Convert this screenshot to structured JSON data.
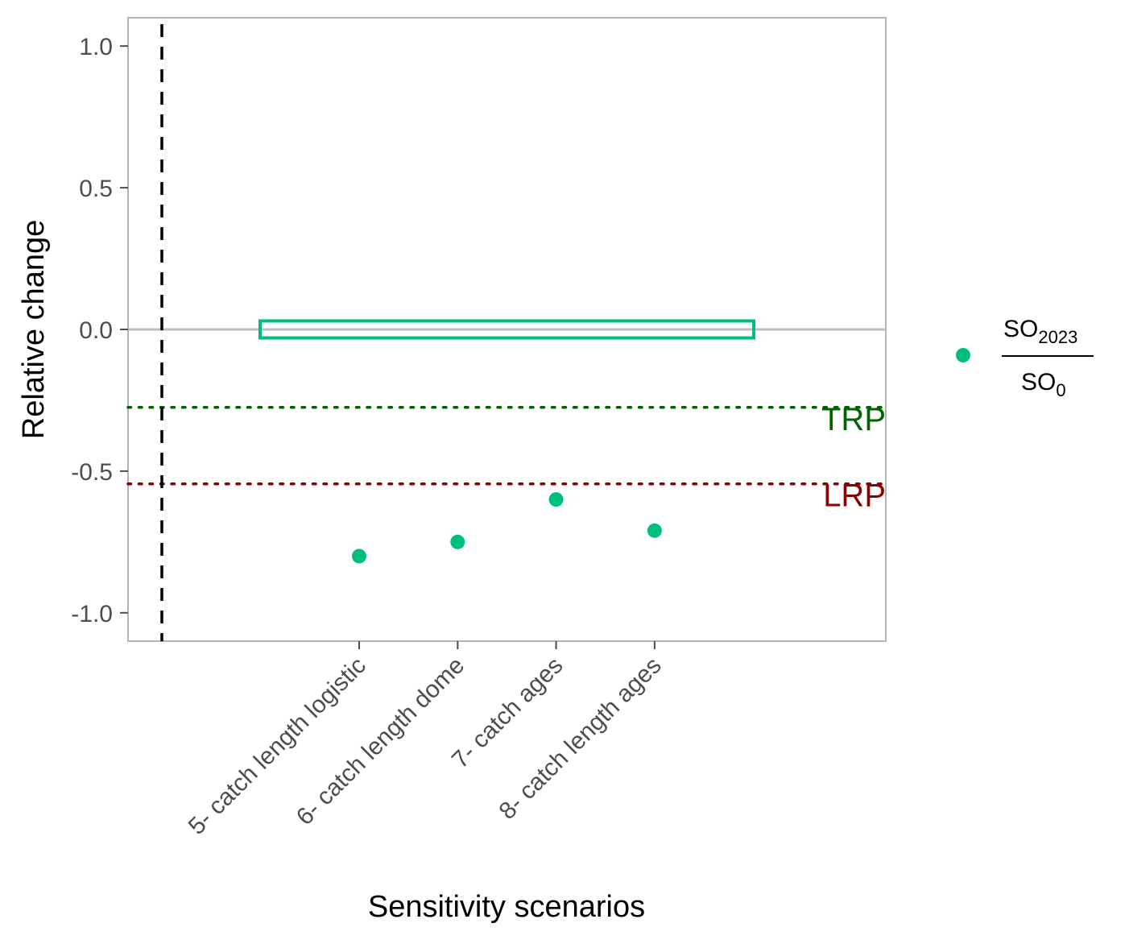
{
  "chart_data": {
    "type": "scatter",
    "xlabel": "Sensitivity scenarios",
    "ylabel": "Relative change",
    "ylim": [
      -1.1,
      1.1
    ],
    "yticks": [
      1.0,
      0.5,
      0.0,
      -0.5,
      -1.0
    ],
    "ytick_labels": [
      "1.0",
      "0.5",
      "0.0",
      "-0.5",
      "-1.0"
    ],
    "categories": [
      "5- catch length logistic",
      "6- catch length dome",
      "7- catch ages",
      "8- catch length ages"
    ],
    "series": [
      {
        "values": [
          -0.8,
          -0.75,
          -0.6,
          -0.71
        ],
        "color": "#00BF7D"
      }
    ],
    "reference_lines": [
      {
        "label": "TRP",
        "y": -0.275,
        "color": "#006400",
        "style": "dotted"
      },
      {
        "label": "LRP",
        "y": -0.545,
        "color": "#8B0000",
        "style": "dotted"
      }
    ],
    "zero_line": {
      "y": 0.0,
      "color": "#bebebe"
    },
    "highlight_box": {
      "y_min": -0.03,
      "y_max": 0.03,
      "color": "#00BF7D"
    },
    "dashed_vline": {
      "color": "#000000"
    },
    "grid": false,
    "legend": {
      "placement": "right",
      "numerator": "SO",
      "numerator_sub": "2023",
      "denominator": "SO",
      "denominator_sub": "0",
      "marker_color": "#00BF7D"
    }
  }
}
